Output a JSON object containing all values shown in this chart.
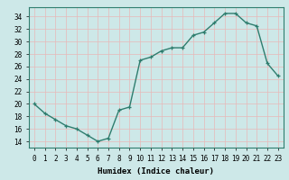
{
  "x": [
    0,
    1,
    2,
    3,
    4,
    5,
    6,
    7,
    8,
    9,
    10,
    11,
    12,
    13,
    14,
    15,
    16,
    17,
    18,
    19,
    20,
    21,
    22,
    23
  ],
  "y": [
    20,
    18.5,
    17.5,
    16.5,
    16,
    15,
    14,
    14.5,
    19,
    19.5,
    27,
    27.5,
    28.5,
    29,
    29,
    31,
    31.5,
    33,
    34.5,
    34.5,
    33,
    32.5,
    26.5,
    24.5
  ],
  "line_color": "#2e7d6e",
  "marker": "+",
  "bg_color": "#cde8e8",
  "grid_color": "#c0d8d8",
  "xlabel": "Humidex (Indice chaleur)",
  "ylim": [
    13,
    35.5
  ],
  "xlim": [
    -0.5,
    23.5
  ],
  "yticks": [
    14,
    16,
    18,
    20,
    22,
    24,
    26,
    28,
    30,
    32,
    34
  ],
  "xtick_labels": [
    "0",
    "1",
    "2",
    "3",
    "4",
    "5",
    "6",
    "7",
    "8",
    "9",
    "10",
    "11",
    "12",
    "13",
    "14",
    "15",
    "16",
    "17",
    "18",
    "19",
    "20",
    "21",
    "22",
    "23"
  ],
  "tick_fontsize": 5.5,
  "xlabel_fontsize": 6.5
}
